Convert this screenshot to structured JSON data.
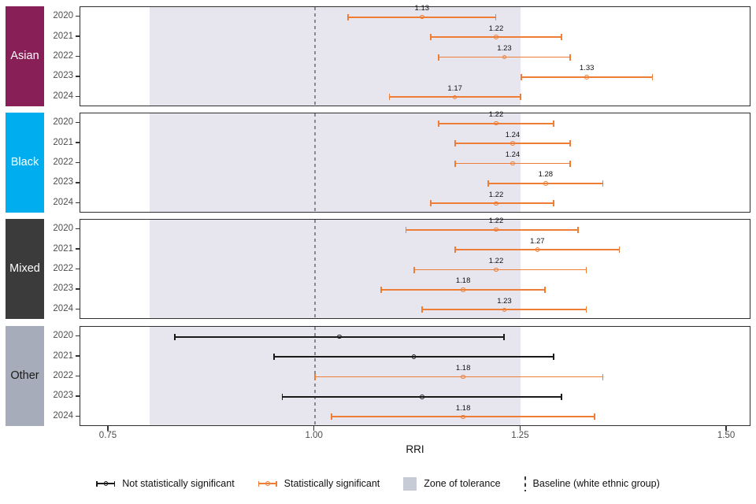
{
  "chart_data": {
    "type": "scatter",
    "subtype": "forest-plot-faceted",
    "xlabel": "RRI",
    "xlim": [
      0.7156,
      1.5295
    ],
    "x_ticks": [
      {
        "value": 0.75,
        "label": "0.75"
      },
      {
        "value": 1.0,
        "label": "1.00"
      },
      {
        "value": 1.25,
        "label": "1.25"
      },
      {
        "value": 1.5,
        "label": "1.50"
      }
    ],
    "zone_of_tolerance": {
      "from": 0.8,
      "to": 1.25
    },
    "baseline_value": 1.0,
    "colors": {
      "significant": "#EE7D36",
      "not_significant": "#1A1A1A",
      "zone": "#E7E6EE",
      "baseline_line": "#8A8A8A",
      "legend_square": "#C7CBD6",
      "legend_dash": "#3A3A3A"
    },
    "groups": [
      {
        "label": "Asian",
        "strip_bg": "#881F56",
        "strip_text_color": "#FFFFFF",
        "rows": [
          {
            "year": "2020",
            "value": 1.13,
            "lo": 1.04,
            "hi": 1.22,
            "significant": true,
            "label": "1.13"
          },
          {
            "year": "2021",
            "value": 1.22,
            "lo": 1.14,
            "hi": 1.3,
            "significant": true,
            "label": "1.22"
          },
          {
            "year": "2022",
            "value": 1.23,
            "lo": 1.15,
            "hi": 1.31,
            "significant": true,
            "label": "1.23"
          },
          {
            "year": "2023",
            "value": 1.33,
            "lo": 1.25,
            "hi": 1.41,
            "significant": true,
            "label": "1.33"
          },
          {
            "year": "2024",
            "value": 1.17,
            "lo": 1.09,
            "hi": 1.25,
            "significant": true,
            "label": "1.17"
          }
        ]
      },
      {
        "label": "Black",
        "strip_bg": "#00AEEF",
        "strip_text_color": "#FFFFFF",
        "rows": [
          {
            "year": "2020",
            "value": 1.22,
            "lo": 1.15,
            "hi": 1.29,
            "significant": true,
            "label": "1.22"
          },
          {
            "year": "2021",
            "value": 1.24,
            "lo": 1.17,
            "hi": 1.31,
            "significant": true,
            "label": "1.24"
          },
          {
            "year": "2022",
            "value": 1.24,
            "lo": 1.17,
            "hi": 1.31,
            "significant": true,
            "label": "1.24"
          },
          {
            "year": "2023",
            "value": 1.28,
            "lo": 1.21,
            "hi": 1.35,
            "significant": true,
            "label": "1.28"
          },
          {
            "year": "2024",
            "value": 1.22,
            "lo": 1.14,
            "hi": 1.29,
            "significant": true,
            "label": "1.22"
          }
        ]
      },
      {
        "label": "Mixed",
        "strip_bg": "#3B3B3B",
        "strip_text_color": "#FFFFFF",
        "rows": [
          {
            "year": "2020",
            "value": 1.22,
            "lo": 1.11,
            "hi": 1.32,
            "significant": true,
            "label": "1.22"
          },
          {
            "year": "2021",
            "value": 1.27,
            "lo": 1.17,
            "hi": 1.37,
            "significant": true,
            "label": "1.27"
          },
          {
            "year": "2022",
            "value": 1.22,
            "lo": 1.12,
            "hi": 1.33,
            "significant": true,
            "label": "1.22"
          },
          {
            "year": "2023",
            "value": 1.18,
            "lo": 1.08,
            "hi": 1.28,
            "significant": true,
            "label": "1.18"
          },
          {
            "year": "2024",
            "value": 1.23,
            "lo": 1.13,
            "hi": 1.33,
            "significant": true,
            "label": "1.23"
          }
        ]
      },
      {
        "label": "Other",
        "strip_bg": "#A6ACBA",
        "strip_text_color": "#1A1A1A",
        "rows": [
          {
            "year": "2020",
            "value": 1.03,
            "lo": 0.83,
            "hi": 1.23,
            "significant": false,
            "label": null
          },
          {
            "year": "2021",
            "value": 1.12,
            "lo": 0.95,
            "hi": 1.29,
            "significant": false,
            "label": null
          },
          {
            "year": "2022",
            "value": 1.18,
            "lo": 1.0,
            "hi": 1.35,
            "significant": true,
            "label": "1.18"
          },
          {
            "year": "2023",
            "value": 1.13,
            "lo": 0.96,
            "hi": 1.3,
            "significant": false,
            "label": null
          },
          {
            "year": "2024",
            "value": 1.18,
            "lo": 1.02,
            "hi": 1.34,
            "significant": true,
            "label": "1.18"
          }
        ]
      }
    ],
    "legend": [
      {
        "type": "errorbar",
        "color": "#1A1A1A",
        "label": "Not statistically significant"
      },
      {
        "type": "errorbar",
        "color": "#EE7D36",
        "label": "Statistically significant"
      },
      {
        "type": "square",
        "color": "#C7CBD6",
        "label": "Zone of tolerance"
      },
      {
        "type": "dashed-line",
        "color": "#3A3A3A",
        "label": "Baseline (white ethnic group)"
      }
    ]
  }
}
